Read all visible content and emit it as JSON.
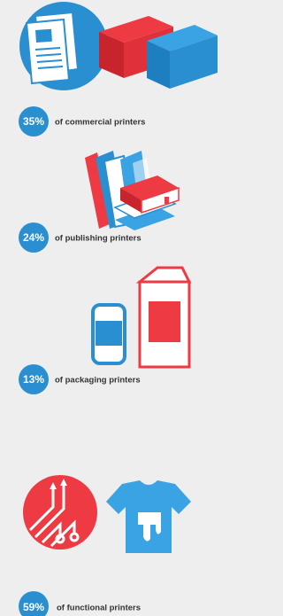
{
  "items": [
    {
      "percent": "35%",
      "label": "of commercial printers"
    },
    {
      "percent": "24%",
      "label": "of publishing printers"
    },
    {
      "percent": "13%",
      "label": "of packaging printers"
    },
    {
      "percent": "59%",
      "label": "of functional printers"
    }
  ]
}
